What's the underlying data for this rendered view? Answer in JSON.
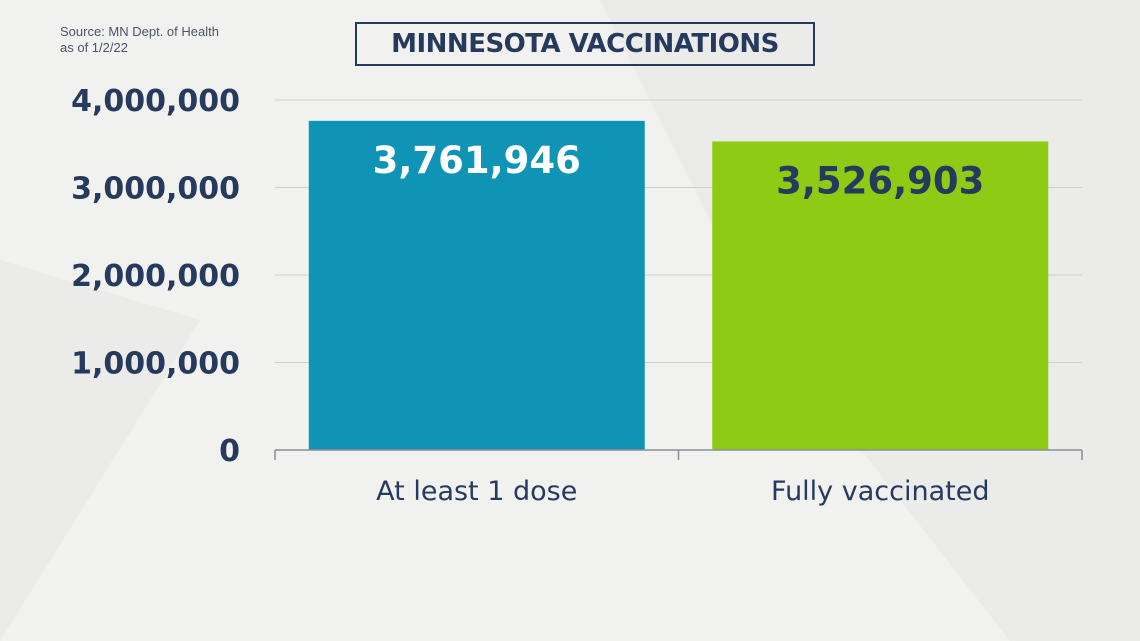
{
  "source": {
    "line1": "Source: MN Dept. of Health",
    "line2": "as of 1/2/22"
  },
  "chart_data": {
    "type": "bar",
    "title": "MINNESOTA VACCINATIONS",
    "categories": [
      "At least 1 dose",
      "Fully vaccinated"
    ],
    "values": [
      3761946,
      3526903
    ],
    "data_labels": [
      "3,761,946",
      "3,526,903"
    ],
    "bar_colors": [
      "#1094b6",
      "#8fcb15"
    ],
    "data_label_colors": [
      "#ffffff",
      "#263a5e"
    ],
    "yticks": [
      0,
      1000000,
      2000000,
      3000000,
      4000000
    ],
    "ytick_labels": [
      "0",
      "1,000,000",
      "2,000,000",
      "3,000,000",
      "4,000,000"
    ],
    "ylim": [
      0,
      4000000
    ],
    "grid": true,
    "legend": "none"
  }
}
